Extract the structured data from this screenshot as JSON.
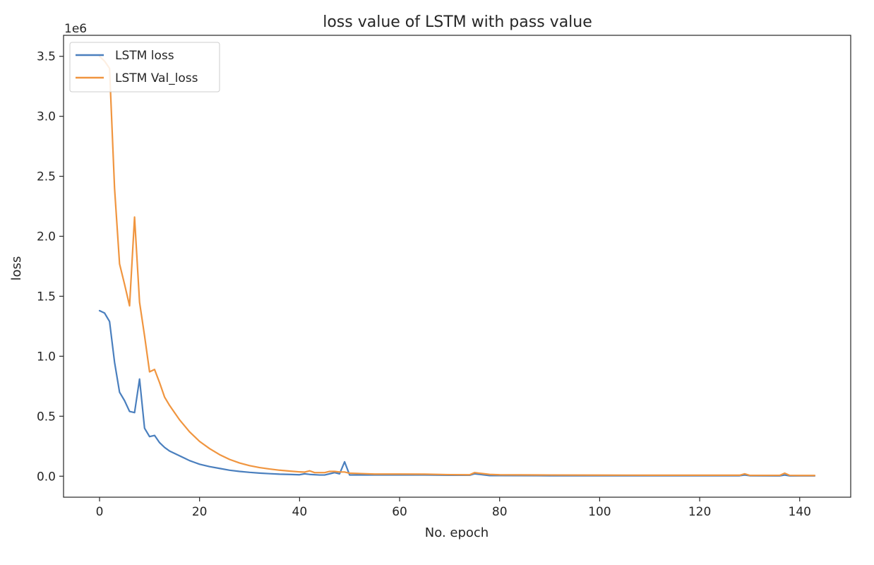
{
  "chart_data": {
    "type": "line",
    "title": "loss value of LSTM with pass value",
    "xlabel": "No. epoch",
    "ylabel": "loss",
    "y_offset_text": "1e6",
    "xlim": [
      -7.2,
      150.2
    ],
    "ylim": [
      -0.175,
      3.675
    ],
    "x_ticks": [
      0,
      20,
      40,
      60,
      80,
      100,
      120,
      140
    ],
    "x_tick_labels": [
      "0",
      "20",
      "40",
      "60",
      "80",
      "100",
      "120",
      "140"
    ],
    "y_ticks": [
      0.0,
      0.5,
      1.0,
      1.5,
      2.0,
      2.5,
      3.0,
      3.5
    ],
    "y_tick_labels": [
      "0.0",
      "0.5",
      "1.0",
      "1.5",
      "2.0",
      "2.5",
      "3.0",
      "3.5"
    ],
    "grid": false,
    "legend_position": "top-left",
    "series": [
      {
        "name": "LSTM loss",
        "color": "#4a7fbe",
        "x": [
          0,
          1,
          2,
          3,
          4,
          5,
          6,
          7,
          8,
          9,
          10,
          11,
          12,
          13,
          14,
          15,
          16,
          17,
          18,
          19,
          20,
          22,
          24,
          26,
          28,
          30,
          32,
          34,
          36,
          38,
          40,
          41,
          42,
          44,
          45,
          46,
          47,
          48,
          49,
          50,
          55,
          60,
          65,
          70,
          74,
          75,
          76,
          77,
          78,
          80,
          90,
          100,
          110,
          120,
          128,
          129,
          130,
          135,
          136,
          137,
          138,
          140,
          143
        ],
        "y": [
          1.38,
          1.36,
          1.29,
          0.95,
          0.7,
          0.63,
          0.54,
          0.53,
          0.81,
          0.4,
          0.33,
          0.34,
          0.28,
          0.24,
          0.21,
          0.19,
          0.17,
          0.15,
          0.13,
          0.115,
          0.1,
          0.08,
          0.065,
          0.05,
          0.04,
          0.032,
          0.026,
          0.021,
          0.017,
          0.015,
          0.012,
          0.02,
          0.015,
          0.01,
          0.01,
          0.02,
          0.03,
          0.02,
          0.12,
          0.01,
          0.01,
          0.01,
          0.01,
          0.008,
          0.008,
          0.02,
          0.015,
          0.01,
          0.005,
          0.005,
          0.004,
          0.004,
          0.004,
          0.004,
          0.004,
          0.01,
          0.004,
          0.003,
          0.003,
          0.01,
          0.003,
          0.003,
          0.003
        ]
      },
      {
        "name": "LSTM Val_loss",
        "color": "#f0953f",
        "x": [
          0,
          1,
          2,
          3,
          4,
          5,
          6,
          7,
          8,
          9,
          10,
          11,
          12,
          13,
          14,
          15,
          16,
          17,
          18,
          19,
          20,
          22,
          24,
          26,
          28,
          30,
          32,
          34,
          36,
          38,
          40,
          41,
          42,
          43,
          44,
          45,
          46,
          47,
          48,
          49,
          50,
          55,
          60,
          65,
          70,
          74,
          75,
          76,
          77,
          78,
          80,
          90,
          100,
          110,
          120,
          128,
          129,
          130,
          135,
          136,
          137,
          138,
          140,
          143
        ],
        "y": [
          3.5,
          3.46,
          3.4,
          2.4,
          1.77,
          1.6,
          1.42,
          2.16,
          1.45,
          1.17,
          0.87,
          0.89,
          0.78,
          0.66,
          0.59,
          0.53,
          0.47,
          0.42,
          0.37,
          0.33,
          0.29,
          0.23,
          0.18,
          0.14,
          0.11,
          0.088,
          0.072,
          0.06,
          0.05,
          0.043,
          0.036,
          0.034,
          0.045,
          0.03,
          0.03,
          0.03,
          0.04,
          0.04,
          0.035,
          0.035,
          0.025,
          0.018,
          0.018,
          0.017,
          0.013,
          0.012,
          0.03,
          0.025,
          0.02,
          0.015,
          0.012,
          0.01,
          0.009,
          0.008,
          0.008,
          0.008,
          0.02,
          0.007,
          0.007,
          0.007,
          0.025,
          0.007,
          0.006,
          0.006
        ]
      }
    ]
  }
}
